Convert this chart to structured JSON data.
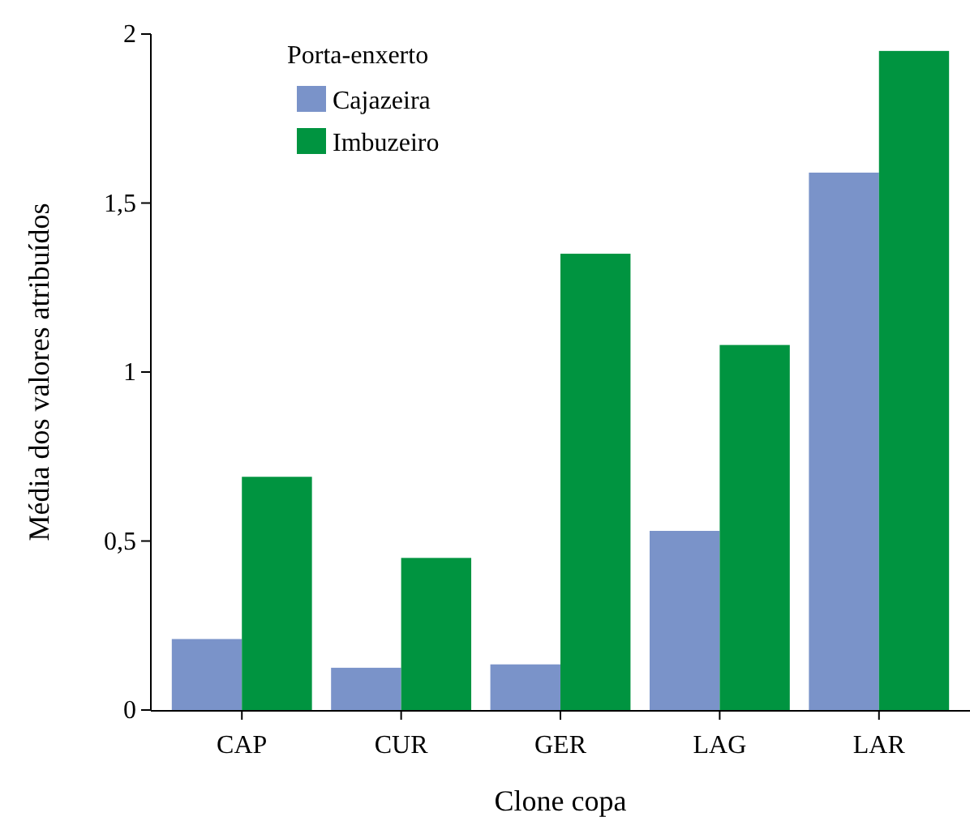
{
  "chart_data": {
    "type": "bar",
    "xlabel": "Clone copa",
    "ylabel": "Média dos valores atribuídos",
    "legend_title": "Porta-enxerto",
    "categories": [
      "CAP",
      "CUR",
      "GER",
      "LAG",
      "LAR"
    ],
    "series": [
      {
        "name": "Cajazeira",
        "color": "#7a93c9",
        "values": [
          0.21,
          0.125,
          0.135,
          0.53,
          1.59
        ]
      },
      {
        "name": "Imbuzeiro",
        "color": "#009440",
        "values": [
          0.69,
          0.45,
          1.35,
          1.08,
          1.95
        ]
      }
    ],
    "ylim": [
      0,
      2
    ],
    "yticks": [
      0,
      {
        "value": 0.5,
        "label": "0,5"
      },
      1,
      {
        "value": 1.5,
        "label": "1,5"
      },
      2
    ],
    "grid": false,
    "legend": "top left"
  }
}
